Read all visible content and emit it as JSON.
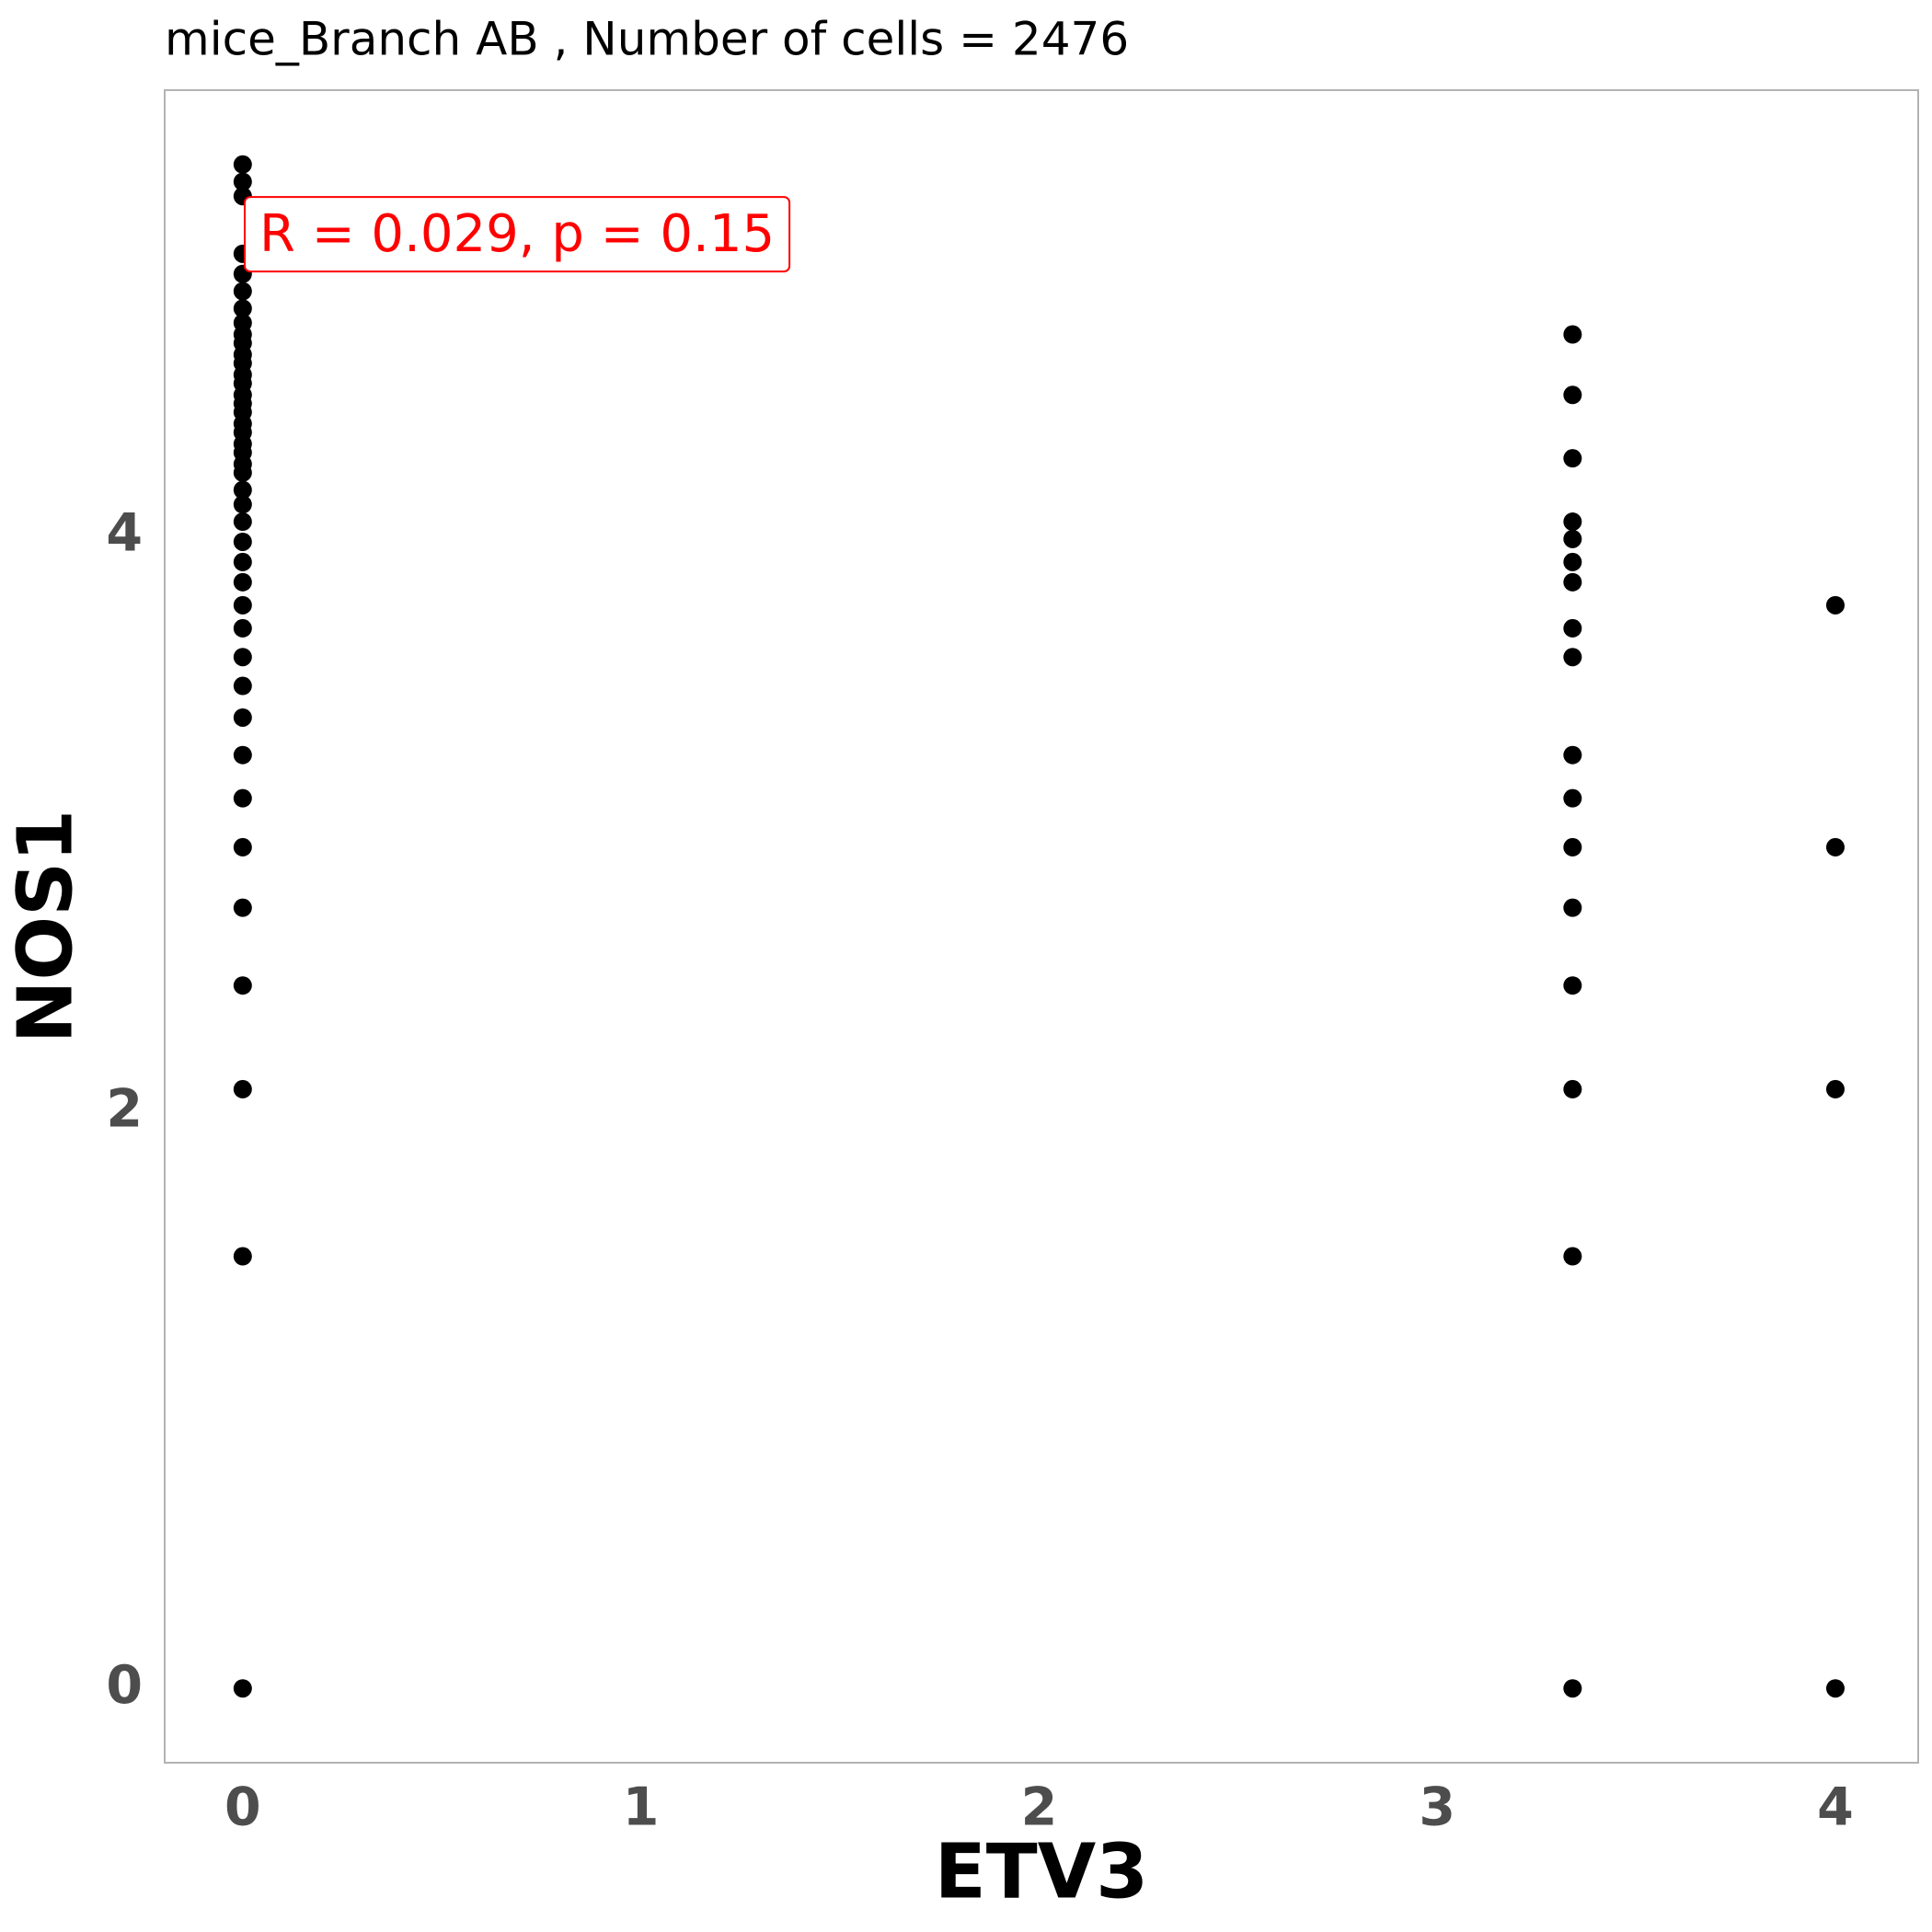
{
  "chart_data": {
    "type": "scatter",
    "title": "mice_Branch AB , Number of cells =  2476",
    "x_label": "ETV3",
    "y_label": "NOS1",
    "annotation": "R = 0.029, p = 0.15",
    "annotation_color": "#ff0000",
    "color": "#000000",
    "grid": false,
    "xlim": [
      -0.196,
      4.208
    ],
    "ylim": [
      -0.258,
      5.548
    ],
    "xticks": [
      0,
      1,
      2,
      3,
      4
    ],
    "yticks": [
      0,
      2,
      4
    ],
    "x": [
      0,
      0,
      0,
      0,
      0,
      0,
      0,
      0,
      0,
      0,
      0,
      0,
      0,
      0,
      0,
      0,
      0,
      0,
      0,
      0,
      0,
      0,
      0,
      0,
      0,
      0,
      0,
      0,
      0,
      0,
      0,
      0,
      0,
      0,
      0,
      0,
      0,
      0,
      0,
      0,
      0,
      0,
      3.34,
      3.34,
      3.34,
      3.34,
      3.34,
      3.34,
      3.34,
      3.34,
      3.34,
      3.34,
      3.34,
      3.34,
      3.34,
      3.34,
      3.34,
      3.34,
      3.34,
      4,
      4,
      4,
      4
    ],
    "values": [
      5.29,
      5.23,
      5.18,
      4.98,
      4.91,
      4.85,
      4.79,
      4.74,
      4.7,
      4.67,
      4.63,
      4.6,
      4.56,
      4.53,
      4.49,
      4.46,
      4.43,
      4.39,
      4.36,
      4.32,
      4.29,
      4.25,
      4.22,
      4.16,
      4.11,
      4.05,
      3.98,
      3.91,
      3.84,
      3.76,
      3.68,
      3.58,
      3.48,
      3.37,
      3.24,
      3.09,
      2.92,
      2.71,
      2.44,
      2.08,
      1.5,
      0,
      4.7,
      4.49,
      4.27,
      4.05,
      3.99,
      3.91,
      3.84,
      3.68,
      3.58,
      3.24,
      3.09,
      2.92,
      2.71,
      2.44,
      2.08,
      1.5,
      0,
      3.76,
      2.92,
      2.08,
      0
    ]
  }
}
